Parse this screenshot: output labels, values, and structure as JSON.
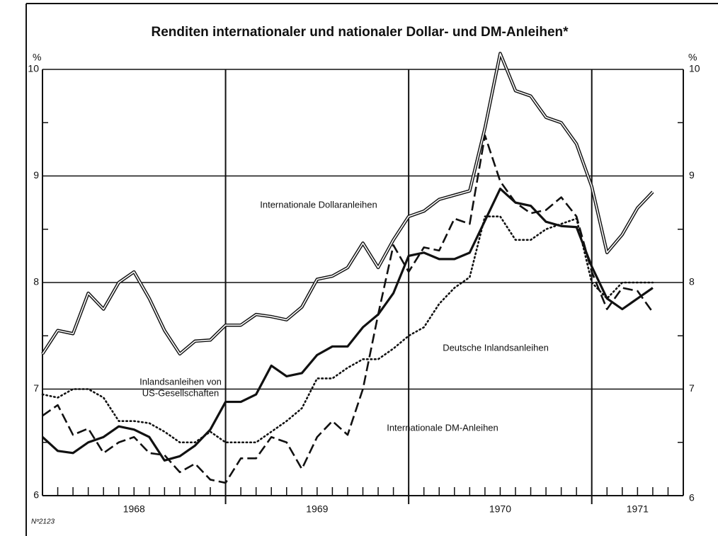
{
  "chart_data": {
    "type": "line",
    "title": "Renditen internationaler und nationaler Dollar- und DM-Anleihen*",
    "y_unit": "%",
    "footnote": "Nº2123",
    "xlim": [
      0,
      42
    ],
    "xticks": [
      {
        "value": 6,
        "label": "1968"
      },
      {
        "value": 18,
        "label": "1969"
      },
      {
        "value": 30,
        "label": "1970"
      },
      {
        "value": 39,
        "label": "1971"
      }
    ],
    "xgrid": [
      12,
      24,
      36
    ],
    "ylim": [
      6,
      10
    ],
    "yticks": [
      6,
      7,
      8,
      9,
      10
    ],
    "grid": true,
    "x": [
      0,
      1,
      2,
      3,
      4,
      5,
      6,
      7,
      8,
      9,
      10,
      11,
      12,
      13,
      14,
      15,
      16,
      17,
      18,
      19,
      20,
      21,
      22,
      23,
      24,
      25,
      26,
      27,
      28,
      29,
      30,
      31,
      32,
      33,
      34,
      35,
      36,
      37,
      38,
      39,
      40
    ],
    "series": [
      {
        "name": "Internationale Dollaranleihen",
        "color": "#111111",
        "style": "double",
        "values": [
          7.33,
          7.55,
          7.52,
          7.9,
          7.75,
          8.0,
          8.1,
          7.85,
          7.55,
          7.33,
          7.45,
          7.46,
          7.6,
          7.6,
          7.7,
          7.68,
          7.65,
          7.77,
          8.03,
          8.06,
          8.14,
          8.37,
          8.14,
          8.4,
          8.62,
          8.67,
          8.78,
          8.82,
          8.86,
          9.45,
          10.15,
          9.8,
          9.75,
          9.55,
          9.5,
          9.3,
          8.9,
          8.28,
          8.45,
          8.7,
          8.85
        ]
      },
      {
        "name": [
          "Inlandsanleihen von",
          "US-Gesellschaften"
        ],
        "color": "#111111",
        "style": "solid",
        "values": [
          6.55,
          6.42,
          6.4,
          6.5,
          6.55,
          6.65,
          6.62,
          6.55,
          6.33,
          6.37,
          6.47,
          6.62,
          6.88,
          6.88,
          6.95,
          7.22,
          7.12,
          7.15,
          7.32,
          7.4,
          7.4,
          7.58,
          7.7,
          7.9,
          8.25,
          8.28,
          8.22,
          8.22,
          8.28,
          8.58,
          8.88,
          8.75,
          8.72,
          8.57,
          8.53,
          8.52,
          8.15,
          7.85,
          7.75,
          7.85,
          7.95
        ]
      },
      {
        "name": "Internationale DM-Anleihen",
        "color": "#111111",
        "style": "dashed",
        "values": [
          6.75,
          6.85,
          6.57,
          6.63,
          6.4,
          6.5,
          6.55,
          6.4,
          6.38,
          6.22,
          6.3,
          6.15,
          6.12,
          6.35,
          6.35,
          6.55,
          6.5,
          6.25,
          6.55,
          6.7,
          6.57,
          7.0,
          7.7,
          8.35,
          8.1,
          8.33,
          8.3,
          8.6,
          8.55,
          9.38,
          8.95,
          8.75,
          8.65,
          8.68,
          8.8,
          8.62,
          8.1,
          7.75,
          7.95,
          7.92,
          7.72
        ]
      },
      {
        "name": "Deutsche Inlandsanleihen",
        "color": "#111111",
        "style": "dotted",
        "values": [
          6.95,
          6.92,
          7.0,
          7.0,
          6.92,
          6.7,
          6.7,
          6.68,
          6.6,
          6.5,
          6.5,
          6.6,
          6.5,
          6.5,
          6.5,
          6.6,
          6.7,
          6.82,
          7.1,
          7.1,
          7.2,
          7.28,
          7.28,
          7.38,
          7.5,
          7.58,
          7.8,
          7.95,
          8.05,
          8.62,
          8.62,
          8.4,
          8.4,
          8.5,
          8.55,
          8.6,
          8.0,
          7.85,
          8.0,
          8.0,
          8.0
        ]
      }
    ]
  }
}
